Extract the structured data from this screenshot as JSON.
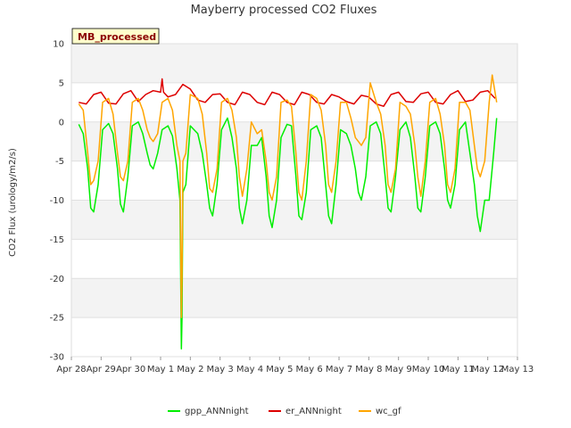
{
  "chart_data": {
    "type": "line",
    "title": "Mayberry processed CO2 Fluxes",
    "ylabel": "CO2 Flux (urology/m2/s)",
    "xlabel": "",
    "badge": "MB_processed",
    "ylim": [
      -30,
      10
    ],
    "yticks": [
      10,
      5,
      0,
      -5,
      -10,
      -15,
      -20,
      -25,
      -30
    ],
    "xlim": [
      0,
      15
    ],
    "xticks": [
      {
        "pos": 0,
        "label": "Apr 28"
      },
      {
        "pos": 1,
        "label": "Apr 29"
      },
      {
        "pos": 2,
        "label": "Apr 30"
      },
      {
        "pos": 3,
        "label": "May 1"
      },
      {
        "pos": 4,
        "label": "May 2"
      },
      {
        "pos": 5,
        "label": "May 3"
      },
      {
        "pos": 6,
        "label": "May 4"
      },
      {
        "pos": 7,
        "label": "May 5"
      },
      {
        "pos": 8,
        "label": "May 6"
      },
      {
        "pos": 9,
        "label": "May 7"
      },
      {
        "pos": 10,
        "label": "May 8"
      },
      {
        "pos": 11,
        "label": "May 9"
      },
      {
        "pos": 12,
        "label": "May 10"
      },
      {
        "pos": 13,
        "label": "May 11"
      },
      {
        "pos": 14,
        "label": "May 12"
      },
      {
        "pos": 15,
        "label": "May 13"
      }
    ],
    "grid": true,
    "legend": "bottom",
    "series": [
      {
        "name": "gpp_ANNnight",
        "color": "#00ee00",
        "x": [
          0.25,
          0.4,
          0.55,
          0.65,
          0.75,
          0.9,
          1.05,
          1.25,
          1.4,
          1.55,
          1.65,
          1.75,
          1.9,
          2.05,
          2.25,
          2.4,
          2.55,
          2.65,
          2.75,
          2.9,
          3.05,
          3.25,
          3.4,
          3.55,
          3.65,
          3.7,
          3.72,
          3.75,
          3.85,
          4.0,
          4.25,
          4.4,
          4.55,
          4.65,
          4.75,
          4.9,
          5.05,
          5.25,
          5.4,
          5.55,
          5.65,
          5.75,
          5.9,
          6.05,
          6.25,
          6.4,
          6.55,
          6.65,
          6.75,
          6.9,
          7.05,
          7.25,
          7.4,
          7.55,
          7.65,
          7.75,
          7.9,
          8.05,
          8.25,
          8.4,
          8.55,
          8.65,
          8.75,
          8.9,
          9.05,
          9.25,
          9.4,
          9.55,
          9.65,
          9.75,
          9.9,
          10.05,
          10.25,
          10.4,
          10.55,
          10.65,
          10.75,
          10.9,
          11.05,
          11.25,
          11.4,
          11.55,
          11.65,
          11.75,
          11.9,
          12.05,
          12.25,
          12.4,
          12.55,
          12.65,
          12.75,
          12.9,
          13.05,
          13.25,
          13.4,
          13.55,
          13.65,
          13.75,
          13.9,
          14.05,
          14.2,
          14.3
        ],
        "values": [
          -0.3,
          -1.5,
          -6,
          -11,
          -11.5,
          -8,
          -1,
          -0.2,
          -1.5,
          -6,
          -10.5,
          -11.5,
          -7,
          -0.5,
          0,
          -1.5,
          -4,
          -5.5,
          -6,
          -4,
          -1,
          -0.5,
          -1.8,
          -6,
          -10,
          -29,
          -25,
          -9,
          -8,
          -0.5,
          -1.5,
          -4,
          -8,
          -11,
          -12,
          -8,
          -1,
          0.5,
          -2,
          -6,
          -11,
          -13,
          -10,
          -3,
          -3,
          -2,
          -7,
          -12,
          -13.5,
          -10,
          -2,
          -0.3,
          -0.5,
          -7,
          -12,
          -12.5,
          -9,
          -1,
          -0.5,
          -2,
          -8,
          -12,
          -13,
          -8,
          -1,
          -1.5,
          -3,
          -6,
          -9,
          -10,
          -7,
          -0.5,
          0,
          -1.5,
          -7,
          -11,
          -11.5,
          -7,
          -1,
          0,
          -2,
          -7,
          -11,
          -11.5,
          -7,
          -0.5,
          0,
          -1.5,
          -6,
          -10,
          -11,
          -8,
          -1,
          0,
          -4,
          -8,
          -12,
          -14,
          -10,
          -10,
          -4,
          0.5
        ]
      },
      {
        "name": "er_ANNnight",
        "color": "#dd0000",
        "x": [
          0.25,
          0.5,
          0.75,
          1.0,
          1.25,
          1.5,
          1.75,
          2.0,
          2.25,
          2.5,
          2.75,
          3.0,
          3.05,
          3.1,
          3.25,
          3.5,
          3.75,
          4.0,
          4.25,
          4.5,
          4.75,
          5.0,
          5.25,
          5.5,
          5.75,
          6.0,
          6.25,
          6.5,
          6.75,
          7.0,
          7.25,
          7.5,
          7.75,
          8.0,
          8.25,
          8.5,
          8.75,
          9.0,
          9.25,
          9.5,
          9.75,
          10.0,
          10.25,
          10.5,
          10.75,
          11.0,
          11.25,
          11.5,
          11.75,
          12.0,
          12.25,
          12.5,
          12.75,
          13.0,
          13.25,
          13.5,
          13.75,
          14.0,
          14.25
        ],
        "values": [
          2.5,
          2.3,
          3.5,
          3.8,
          2.4,
          2.3,
          3.6,
          4.0,
          2.6,
          3.5,
          4.0,
          3.8,
          5.5,
          3.8,
          3.2,
          3.5,
          4.8,
          4.2,
          2.8,
          2.5,
          3.5,
          3.6,
          2.5,
          2.2,
          3.8,
          3.5,
          2.5,
          2.2,
          3.8,
          3.5,
          2.5,
          2.2,
          3.8,
          3.5,
          2.5,
          2.3,
          3.5,
          3.2,
          2.6,
          2.3,
          3.4,
          3.2,
          2.3,
          2.0,
          3.5,
          3.8,
          2.6,
          2.5,
          3.6,
          3.8,
          2.5,
          2.3,
          3.5,
          4.0,
          2.6,
          2.8,
          3.8,
          4.0,
          3.0
        ]
      },
      {
        "name": "wc_gf",
        "color": "#ffa500",
        "x": [
          0.25,
          0.4,
          0.55,
          0.65,
          0.75,
          0.9,
          1.05,
          1.25,
          1.4,
          1.55,
          1.65,
          1.75,
          1.9,
          2.05,
          2.25,
          2.4,
          2.55,
          2.65,
          2.75,
          2.9,
          3.05,
          3.25,
          3.4,
          3.55,
          3.65,
          3.7,
          3.72,
          3.75,
          3.85,
          4.0,
          4.25,
          4.4,
          4.55,
          4.65,
          4.75,
          4.9,
          5.05,
          5.25,
          5.4,
          5.55,
          5.65,
          5.75,
          5.9,
          6.05,
          6.25,
          6.4,
          6.55,
          6.65,
          6.75,
          6.9,
          7.05,
          7.25,
          7.4,
          7.55,
          7.65,
          7.75,
          7.9,
          8.05,
          8.25,
          8.4,
          8.55,
          8.65,
          8.75,
          8.9,
          9.05,
          9.25,
          9.4,
          9.55,
          9.65,
          9.75,
          9.9,
          10.05,
          10.25,
          10.4,
          10.55,
          10.65,
          10.75,
          10.9,
          11.05,
          11.25,
          11.4,
          11.55,
          11.65,
          11.75,
          11.9,
          12.05,
          12.25,
          12.4,
          12.55,
          12.65,
          12.75,
          12.9,
          13.05,
          13.25,
          13.4,
          13.55,
          13.65,
          13.75,
          13.9,
          14.05,
          14.15,
          14.3
        ],
        "values": [
          2.3,
          1.5,
          -4,
          -8,
          -7.5,
          -5,
          2.5,
          3.0,
          1.0,
          -4,
          -7,
          -7.5,
          -5,
          2.5,
          3.0,
          1.5,
          -1,
          -2,
          -2.5,
          -1.5,
          2.5,
          3.0,
          1.5,
          -3,
          -5,
          -25,
          -20,
          -5,
          -4,
          3.5,
          3.0,
          1.0,
          -4,
          -8.5,
          -9,
          -6,
          2.5,
          3.0,
          1.5,
          -2,
          -7,
          -9.5,
          -6,
          0,
          -1.5,
          -1.0,
          -5,
          -9,
          -10,
          -7,
          2.5,
          2.8,
          2.0,
          -4,
          -9,
          -10,
          -5,
          3.5,
          3.0,
          1.5,
          -3,
          -8,
          -9,
          -5,
          2.5,
          2.5,
          0.5,
          -2,
          -2.5,
          -3,
          -2,
          5.0,
          2.5,
          1.0,
          -3,
          -8,
          -9,
          -6,
          2.5,
          2.0,
          1.0,
          -3,
          -7,
          -9.5,
          -5,
          2.5,
          3.0,
          1.0,
          -3,
          -8,
          -9,
          -6,
          2.5,
          2.5,
          1.5,
          -3,
          -6,
          -7,
          -5,
          2.5,
          6.0,
          2.5
        ]
      }
    ]
  }
}
